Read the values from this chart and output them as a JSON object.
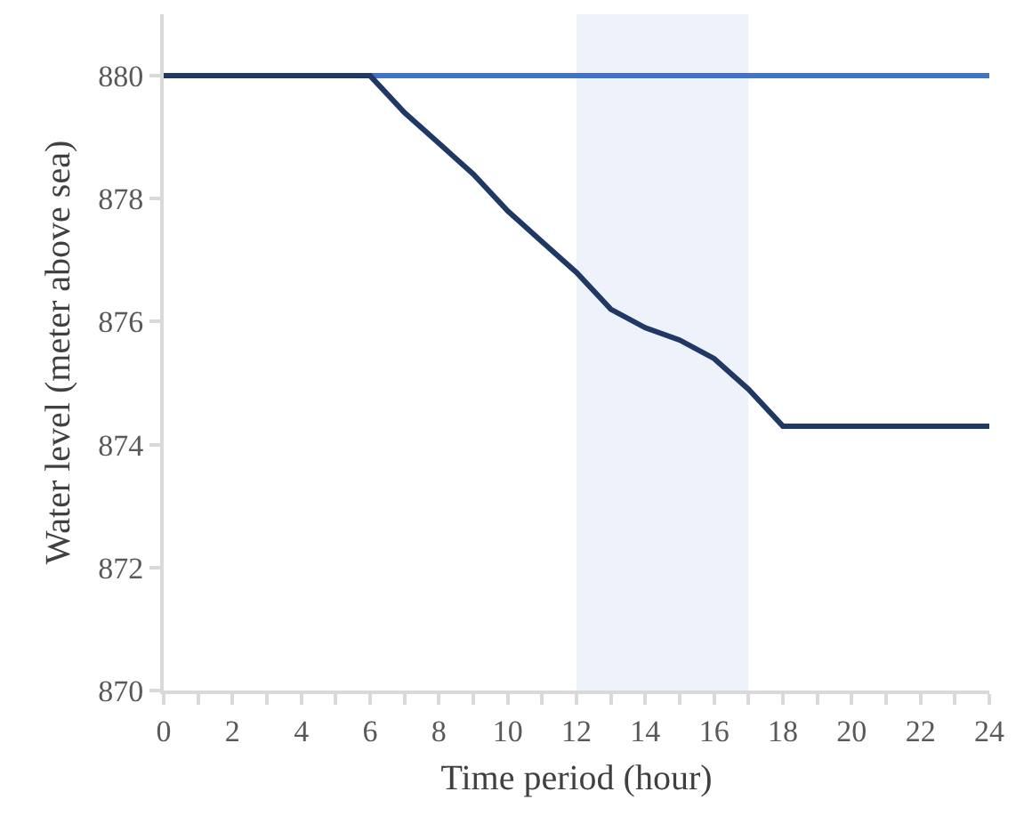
{
  "chart_data": {
    "type": "line",
    "xlabel": "Time period (hour)",
    "ylabel": "Water level (meter above sea)",
    "x": [
      0,
      1,
      2,
      3,
      4,
      5,
      6,
      7,
      8,
      9,
      10,
      11,
      12,
      13,
      14,
      15,
      16,
      17,
      18,
      19,
      20,
      21,
      22,
      23,
      24
    ],
    "series": [
      {
        "color": "#4472c4",
        "values": [
          null,
          null,
          null,
          null,
          null,
          null,
          880,
          880,
          880,
          880,
          880,
          880,
          880,
          880,
          880,
          880,
          880,
          880,
          880,
          880,
          880,
          880,
          880,
          880,
          880
        ]
      },
      {
        "color": "#203864",
        "values": [
          880,
          880,
          880,
          880,
          880,
          880,
          880,
          879.4,
          878.9,
          878.4,
          877.8,
          877.3,
          876.8,
          876.2,
          875.9,
          875.7,
          875.4,
          874.9,
          874.3,
          874.3,
          874.3,
          874.3,
          874.3,
          874.3,
          874.3
        ]
      }
    ],
    "xlim": [
      0,
      24
    ],
    "xticks": [
      0,
      {
        "value": 1,
        "label": null
      },
      2,
      {
        "value": 3,
        "label": null
      },
      4,
      {
        "value": 5,
        "label": null
      },
      6,
      {
        "value": 7,
        "label": null
      },
      8,
      {
        "value": 9,
        "label": null
      },
      10,
      {
        "value": 11,
        "label": null
      },
      12,
      {
        "value": 13,
        "label": null
      },
      14,
      {
        "value": 15,
        "label": null
      },
      16,
      {
        "value": 17,
        "label": null
      },
      18,
      {
        "value": 19,
        "label": null
      },
      20,
      {
        "value": 21,
        "label": null
      },
      22,
      {
        "value": 23,
        "label": null
      },
      24
    ],
    "ylim": [
      870,
      881
    ],
    "yticks": [
      870,
      872,
      874,
      876,
      878,
      880
    ],
    "bands": [
      {
        "axis": "x",
        "from": 12,
        "to": 17,
        "color": "#eef2fa"
      }
    ],
    "grid": false,
    "marker": "none",
    "line_style": "solid"
  }
}
